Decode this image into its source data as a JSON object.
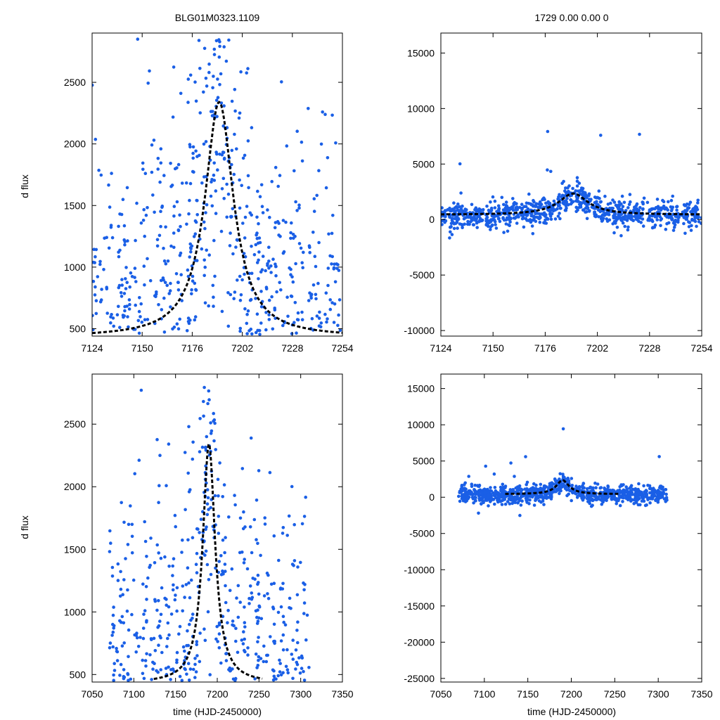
{
  "figure": {
    "title_left": "BLG01M0323.1109",
    "title_right": "1729  0.00  0.00  0",
    "ylabel": "d flux",
    "xlabel": "time (HJD-2450000)"
  },
  "colors": {
    "points": "#1a5fe6",
    "model": "#000000",
    "frame": "#000000"
  },
  "chart_data": [
    {
      "panel": "top-left",
      "type": "scatter",
      "xlim": [
        7124,
        7254
      ],
      "ylim": [
        440,
        2900
      ],
      "xticks": [
        7124,
        7150,
        7176,
        7202,
        7228,
        7254
      ],
      "yticks": [
        500,
        1000,
        1500,
        2000,
        2500
      ],
      "model": {
        "peak_time": 7190,
        "peak_flux": 2340,
        "baseline": 430,
        "width": 9
      },
      "seasons": [
        [
          7124,
          7254
        ]
      ],
      "scatter": {
        "center": 400,
        "spread": 750,
        "clip_low": 450,
        "clip_high": 2880
      }
    },
    {
      "panel": "top-right",
      "type": "scatter",
      "xlim": [
        7124,
        7254
      ],
      "ylim": [
        -10500,
        16800
      ],
      "xticks": [
        7124,
        7150,
        7176,
        7202,
        7228,
        7254
      ],
      "yticks": [
        -10000,
        -5000,
        0,
        5000,
        10000,
        15000
      ],
      "model": {
        "peak_time": 7190,
        "peak_flux": 2340,
        "baseline": 430,
        "width": 9
      },
      "seasons": [
        [
          7124,
          7254
        ]
      ],
      "scatter": {
        "center": 300,
        "spread": 600,
        "clip_low": -10400,
        "clip_high": 16700
      }
    },
    {
      "panel": "bottom-left",
      "type": "scatter",
      "xlim": [
        7050,
        7350
      ],
      "ylim": [
        440,
        2900
      ],
      "xticks": [
        7050,
        7100,
        7150,
        7200,
        7250,
        7300,
        7350
      ],
      "yticks": [
        500,
        1000,
        1500,
        2000,
        2500
      ],
      "model": {
        "peak_time": 7190,
        "peak_flux": 2340,
        "baseline": 430,
        "width": 9,
        "model_range": [
          7124,
          7254
        ]
      },
      "seasons": [
        [
          7070,
          7310
        ]
      ],
      "scatter": {
        "center": 400,
        "spread": 750,
        "clip_low": 450,
        "clip_high": 2880
      }
    },
    {
      "panel": "bottom-right",
      "type": "scatter",
      "xlim": [
        7050,
        7350
      ],
      "ylim": [
        -25500,
        17000
      ],
      "xticks": [
        7050,
        7100,
        7150,
        7200,
        7250,
        7300,
        7350
      ],
      "yticks": [
        -25000,
        -20000,
        -15000,
        -10000,
        -5000,
        0,
        5000,
        10000,
        15000
      ],
      "model": {
        "peak_time": 7190,
        "peak_flux": 2340,
        "baseline": 430,
        "width": 9,
        "model_range": [
          7124,
          7254
        ]
      },
      "seasons": [
        [
          7070,
          7310
        ]
      ],
      "scatter": {
        "center": 300,
        "spread": 600,
        "clip_low": -25400,
        "clip_high": 16800
      }
    }
  ]
}
